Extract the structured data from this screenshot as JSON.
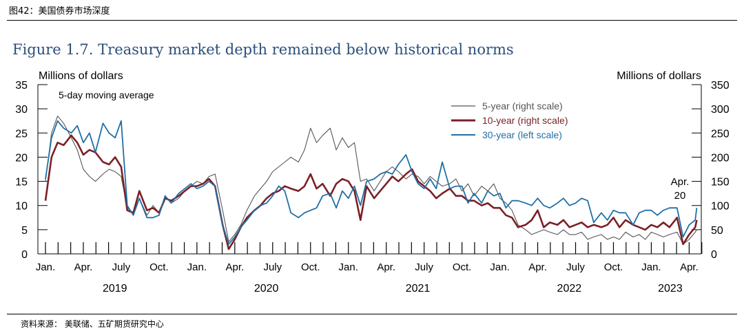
{
  "header": {
    "label": "图42：美国债券市场深度"
  },
  "figure_title": "Figure 1.7. Treasury market depth remained below historical norms",
  "footer": {
    "source": "资料来源：  美联储、五矿期货研究中心"
  },
  "chart_data": {
    "type": "line",
    "left_axis": {
      "label": "Millions of dollars",
      "ylim": [
        0,
        35
      ],
      "ticks": [
        0,
        5,
        10,
        15,
        20,
        25,
        30,
        35
      ]
    },
    "right_axis": {
      "label": "Millions of dollars",
      "ylim": [
        0,
        350
      ],
      "ticks": [
        0,
        50,
        100,
        150,
        200,
        250,
        300,
        350
      ]
    },
    "x_axis": {
      "month_labels": [
        "Jan.",
        "Apr.",
        "July",
        "Oct.",
        "Jan.",
        "Apr.",
        "July",
        "Oct.",
        "Jan.",
        "Apr.",
        "July",
        "Oct.",
        "Jan.",
        "Apr.",
        "July",
        "Oct.",
        "Jan.",
        "Apr."
      ],
      "year_labels": [
        "2019",
        "2020",
        "2021",
        "2022",
        "2023"
      ]
    },
    "annotation": "5-day moving average",
    "end_annotation": "Apr.\n20",
    "legend_position": "top-right",
    "series": [
      {
        "name": "5-year (right scale)",
        "axis": "right",
        "color": "#555555",
        "x": [
          2019.0,
          2019.04,
          2019.08,
          2019.12,
          2019.17,
          2019.21,
          2019.25,
          2019.29,
          2019.33,
          2019.38,
          2019.42,
          2019.46,
          2019.5,
          2019.54,
          2019.58,
          2019.62,
          2019.67,
          2019.71,
          2019.75,
          2019.79,
          2019.83,
          2019.88,
          2019.92,
          2019.96,
          2020.0,
          2020.04,
          2020.08,
          2020.12,
          2020.17,
          2020.21,
          2020.25,
          2020.29,
          2020.33,
          2020.38,
          2020.42,
          2020.46,
          2020.5,
          2020.54,
          2020.58,
          2020.62,
          2020.67,
          2020.71,
          2020.75,
          2020.79,
          2020.83,
          2020.88,
          2020.92,
          2020.96,
          2021.0,
          2021.04,
          2021.08,
          2021.12,
          2021.17,
          2021.21,
          2021.25,
          2021.29,
          2021.33,
          2021.38,
          2021.42,
          2021.46,
          2021.5,
          2021.54,
          2021.58,
          2021.62,
          2021.67,
          2021.71,
          2021.75,
          2021.79,
          2021.83,
          2021.88,
          2021.92,
          2021.96,
          2022.0,
          2022.04,
          2022.08,
          2022.12,
          2022.17,
          2022.21,
          2022.25,
          2022.29,
          2022.33,
          2022.38,
          2022.42,
          2022.46,
          2022.5,
          2022.54,
          2022.58,
          2022.62,
          2022.67,
          2022.71,
          2022.75,
          2022.79,
          2022.83,
          2022.88,
          2022.92,
          2022.96,
          2023.0,
          2023.04,
          2023.08,
          2023.12,
          2023.17,
          2023.21,
          2023.25,
          2023.29,
          2023.3
        ],
        "values": [
          150,
          250,
          285,
          270,
          240,
          215,
          175,
          160,
          150,
          165,
          175,
          170,
          160,
          95,
          85,
          115,
          80,
          100,
          85,
          120,
          105,
          115,
          130,
          140,
          150,
          145,
          160,
          165,
          90,
          25,
          40,
          60,
          90,
          120,
          135,
          150,
          170,
          180,
          190,
          200,
          190,
          215,
          260,
          230,
          245,
          260,
          215,
          240,
          220,
          230,
          150,
          155,
          130,
          150,
          170,
          180,
          170,
          155,
          165,
          160,
          145,
          160,
          150,
          140,
          145,
          155,
          130,
          145,
          120,
          140,
          130,
          145,
          115,
          105,
          90,
          60,
          50,
          40,
          45,
          50,
          45,
          40,
          50,
          40,
          40,
          45,
          30,
          35,
          40,
          30,
          35,
          30,
          45,
          35,
          40,
          30,
          45,
          40,
          35,
          40,
          45,
          20,
          30,
          45,
          50
        ]
      },
      {
        "name": "10-year (right scale)",
        "axis": "right",
        "color": "#7b1f24",
        "x": [
          2019.0,
          2019.04,
          2019.08,
          2019.12,
          2019.17,
          2019.21,
          2019.25,
          2019.29,
          2019.33,
          2019.38,
          2019.42,
          2019.46,
          2019.5,
          2019.54,
          2019.58,
          2019.62,
          2019.67,
          2019.71,
          2019.75,
          2019.79,
          2019.83,
          2019.88,
          2019.92,
          2019.96,
          2020.0,
          2020.04,
          2020.08,
          2020.12,
          2020.17,
          2020.21,
          2020.25,
          2020.29,
          2020.33,
          2020.38,
          2020.42,
          2020.46,
          2020.5,
          2020.54,
          2020.58,
          2020.62,
          2020.67,
          2020.71,
          2020.75,
          2020.79,
          2020.83,
          2020.88,
          2020.92,
          2020.96,
          2021.0,
          2021.04,
          2021.08,
          2021.12,
          2021.17,
          2021.21,
          2021.25,
          2021.29,
          2021.33,
          2021.38,
          2021.42,
          2021.46,
          2021.5,
          2021.54,
          2021.58,
          2021.62,
          2021.67,
          2021.71,
          2021.75,
          2021.79,
          2021.83,
          2021.88,
          2021.92,
          2021.96,
          2022.0,
          2022.04,
          2022.08,
          2022.12,
          2022.17,
          2022.21,
          2022.25,
          2022.29,
          2022.33,
          2022.38,
          2022.42,
          2022.46,
          2022.5,
          2022.54,
          2022.58,
          2022.62,
          2022.67,
          2022.71,
          2022.75,
          2022.79,
          2022.83,
          2022.88,
          2022.92,
          2022.96,
          2023.0,
          2023.04,
          2023.08,
          2023.12,
          2023.17,
          2023.21,
          2023.25,
          2023.29,
          2023.3
        ],
        "values": [
          110,
          200,
          230,
          225,
          245,
          230,
          205,
          215,
          210,
          190,
          185,
          200,
          180,
          90,
          85,
          130,
          90,
          95,
          85,
          115,
          110,
          120,
          130,
          140,
          140,
          145,
          155,
          140,
          60,
          10,
          30,
          55,
          75,
          90,
          100,
          115,
          125,
          130,
          140,
          135,
          130,
          140,
          165,
          135,
          145,
          120,
          145,
          155,
          150,
          130,
          70,
          140,
          115,
          130,
          145,
          160,
          150,
          165,
          175,
          150,
          140,
          130,
          115,
          125,
          135,
          120,
          120,
          110,
          110,
          100,
          105,
          95,
          95,
          80,
          75,
          55,
          60,
          70,
          90,
          55,
          65,
          60,
          70,
          55,
          60,
          65,
          55,
          60,
          55,
          60,
          75,
          55,
          70,
          60,
          55,
          50,
          60,
          55,
          65,
          55,
          75,
          20,
          40,
          55,
          70
        ]
      },
      {
        "name": "30-year (left scale)",
        "axis": "left",
        "color": "#1f6fa6",
        "x": [
          2019.0,
          2019.04,
          2019.08,
          2019.12,
          2019.17,
          2019.21,
          2019.25,
          2019.29,
          2019.33,
          2019.38,
          2019.42,
          2019.46,
          2019.5,
          2019.54,
          2019.58,
          2019.62,
          2019.67,
          2019.71,
          2019.75,
          2019.79,
          2019.83,
          2019.88,
          2019.92,
          2019.96,
          2020.0,
          2020.04,
          2020.08,
          2020.12,
          2020.17,
          2020.21,
          2020.25,
          2020.29,
          2020.33,
          2020.38,
          2020.42,
          2020.46,
          2020.5,
          2020.54,
          2020.58,
          2020.62,
          2020.67,
          2020.71,
          2020.75,
          2020.79,
          2020.83,
          2020.88,
          2020.92,
          2020.96,
          2021.0,
          2021.04,
          2021.08,
          2021.12,
          2021.17,
          2021.21,
          2021.25,
          2021.29,
          2021.33,
          2021.38,
          2021.42,
          2021.46,
          2021.5,
          2021.54,
          2021.58,
          2021.62,
          2021.67,
          2021.71,
          2021.75,
          2021.79,
          2021.83,
          2021.88,
          2021.92,
          2021.96,
          2022.0,
          2022.04,
          2022.08,
          2022.12,
          2022.17,
          2022.21,
          2022.25,
          2022.29,
          2022.33,
          2022.38,
          2022.42,
          2022.46,
          2022.5,
          2022.54,
          2022.58,
          2022.62,
          2022.67,
          2022.71,
          2022.75,
          2022.79,
          2022.83,
          2022.88,
          2022.92,
          2022.96,
          2023.0,
          2023.04,
          2023.08,
          2023.12,
          2023.17,
          2023.21,
          2023.25,
          2023.29,
          2023.3
        ],
        "values": [
          15.5,
          24,
          27.5,
          26,
          25,
          26.5,
          23,
          25,
          21,
          27,
          25,
          24,
          27.5,
          10,
          8,
          11.5,
          7.5,
          7.5,
          8,
          12,
          10.5,
          12.5,
          13.5,
          14.5,
          13.5,
          14,
          15,
          14,
          6,
          2,
          3.5,
          5.5,
          7,
          9,
          10,
          10.5,
          12,
          14,
          13,
          8.5,
          7.5,
          8.5,
          9,
          9.5,
          12,
          12.5,
          9.5,
          13,
          11.5,
          14,
          10,
          15,
          15.5,
          16.5,
          17,
          16.5,
          18.5,
          20.5,
          17,
          14.5,
          13.5,
          15.5,
          13.5,
          19,
          13.5,
          14,
          14,
          10.5,
          12.5,
          10.5,
          13,
          12,
          12.5,
          9.5,
          11,
          11,
          10.5,
          10,
          11.5,
          10,
          9.5,
          10.5,
          11.5,
          10,
          10.5,
          11.5,
          11,
          6.5,
          8.5,
          7,
          9,
          8.5,
          8.5,
          6,
          8.5,
          9,
          9,
          8,
          9,
          9.5,
          9.5,
          3.5,
          6,
          7,
          9.5
        ]
      }
    ]
  }
}
